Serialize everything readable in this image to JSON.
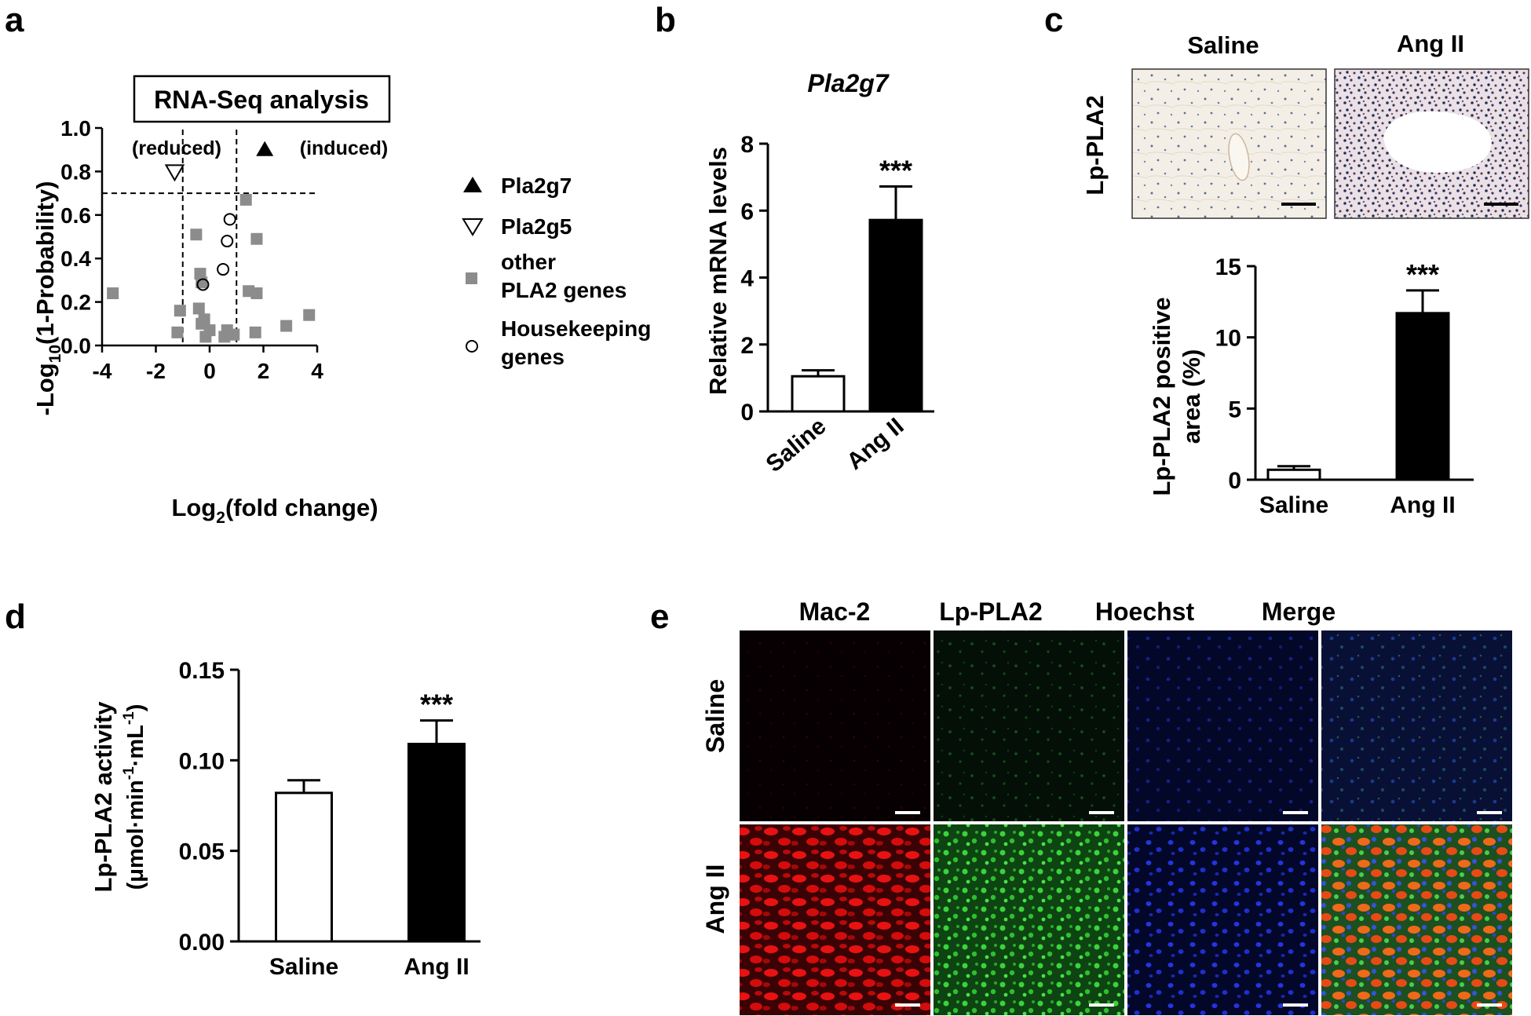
{
  "panels": {
    "a": "a",
    "b": "b",
    "c": "c",
    "d": "d",
    "e": "e"
  },
  "chart_data": [
    {
      "panel": "a",
      "type": "scatter",
      "title": "RNA-Seq analysis",
      "xlabel": "Log2(fold change)",
      "ylabel": "-Log10(1-Probability)",
      "xlim": [
        -4,
        4
      ],
      "ylim": [
        0,
        1.0
      ],
      "xticks": [
        "-4",
        "-2",
        "0",
        "2",
        "4"
      ],
      "yticks": [
        "0.0",
        "0.2",
        "0.4",
        "0.6",
        "0.8",
        "1.0"
      ],
      "region_labels": {
        "reduced": "(reduced)",
        "induced": "(induced)"
      },
      "thresholds": {
        "x": [
          -1,
          1
        ],
        "y": 0.7
      },
      "legend": [
        "Pla2g7",
        "Pla2g5",
        "other\nPLA2 genes",
        "Housekeeping\ngenes"
      ],
      "series": [
        {
          "name": "Pla2g7",
          "marker": "triangle-filled",
          "points": [
            [
              2.05,
              0.9
            ]
          ]
        },
        {
          "name": "Pla2g5",
          "marker": "triangle-down-open",
          "points": [
            [
              -1.3,
              0.8
            ]
          ]
        },
        {
          "name": "other PLA2 genes",
          "marker": "square-grey",
          "points": [
            [
              -3.6,
              0.24
            ],
            [
              -1.1,
              0.16
            ],
            [
              -1.2,
              0.06
            ],
            [
              -0.5,
              0.51
            ],
            [
              -0.35,
              0.33
            ],
            [
              -0.3,
              0.29
            ],
            [
              -0.4,
              0.17
            ],
            [
              -0.3,
              0.1
            ],
            [
              -0.2,
              0.12
            ],
            [
              -0.15,
              0.04
            ],
            [
              0.0,
              0.07
            ],
            [
              0.55,
              0.04
            ],
            [
              0.65,
              0.07
            ],
            [
              0.8,
              0.05
            ],
            [
              0.9,
              0.05
            ],
            [
              1.35,
              0.67
            ],
            [
              1.45,
              0.25
            ],
            [
              1.75,
              0.49
            ],
            [
              1.75,
              0.24
            ],
            [
              1.7,
              0.06
            ],
            [
              2.85,
              0.09
            ],
            [
              3.7,
              0.14
            ]
          ]
        },
        {
          "name": "Housekeeping genes",
          "marker": "circle-open",
          "points": [
            [
              0.75,
              0.58
            ],
            [
              0.65,
              0.48
            ],
            [
              0.5,
              0.35
            ],
            [
              -0.25,
              0.28
            ]
          ]
        }
      ]
    },
    {
      "panel": "b",
      "type": "bar",
      "title": "Pla2g7",
      "ylabel": "Relative mRNA levels",
      "categories": [
        "Saline",
        "Ang II"
      ],
      "values": [
        1.05,
        5.72
      ],
      "errors": [
        0.18,
        1.0
      ],
      "significance": [
        "",
        "***"
      ],
      "ylim": [
        0,
        8
      ],
      "yticks": [
        "0",
        "2",
        "4",
        "6",
        "8"
      ]
    },
    {
      "panel": "c",
      "type": "bar",
      "ylabel": "Lp-PLA2 positive\narea (%)",
      "categories": [
        "Saline",
        "Ang II"
      ],
      "values": [
        0.7,
        11.7
      ],
      "errors": [
        0.25,
        1.6
      ],
      "significance": [
        "",
        "***"
      ],
      "ylim": [
        0,
        15
      ],
      "yticks": [
        "0",
        "5",
        "10",
        "15"
      ]
    },
    {
      "panel": "d",
      "type": "bar",
      "ylabel": "Lp-PLA2 activity",
      "ylabel_units": "(μmol·min⁻¹·mL⁻¹)",
      "categories": [
        "Saline",
        "Ang II"
      ],
      "values": [
        0.082,
        0.109
      ],
      "errors": [
        0.007,
        0.013
      ],
      "significance": [
        "",
        "***"
      ],
      "ylim": [
        0,
        0.15
      ],
      "yticks": [
        "0.00",
        "0.05",
        "0.10",
        "0.15"
      ]
    }
  ],
  "micrographs_c": {
    "row_label": "Lp-PLA2",
    "columns": [
      "Saline",
      "Ang II"
    ]
  },
  "micrographs_e": {
    "columns": [
      "Mac-2",
      "Lp-PLA2",
      "Hoechst",
      "Merge"
    ],
    "rows": [
      "Saline",
      "Ang II"
    ]
  }
}
